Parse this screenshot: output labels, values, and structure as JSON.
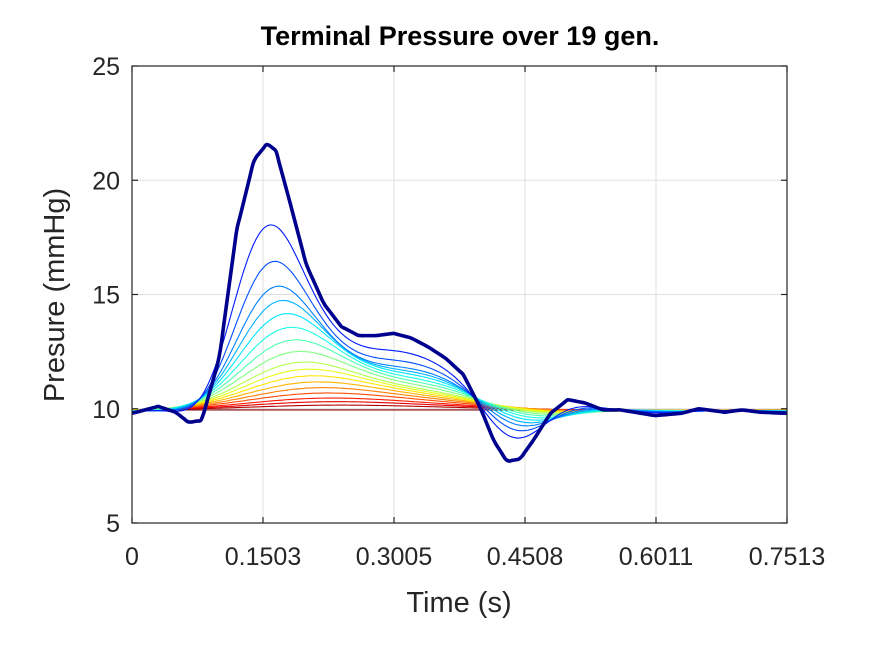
{
  "chart_data": {
    "type": "line",
    "title": "Terminal Pressure over 19 gen.",
    "xlabel": "Time (s)",
    "ylabel": "Presure (mmHg)",
    "xlim": [
      0,
      0.7513
    ],
    "ylim": [
      5,
      25
    ],
    "xticks": [
      "0",
      "0.1503",
      "0.3005",
      "0.4508",
      "0.6011",
      "0.7513"
    ],
    "yticks": [
      "5",
      "10",
      "15",
      "20",
      "25"
    ],
    "grid": true,
    "colormap": "jet",
    "baseline": 9.95,
    "series_count": 19,
    "primary_series_color": "#00008f",
    "primary_curve": {
      "x": [
        0,
        0.03,
        0.05,
        0.065,
        0.08,
        0.1,
        0.12,
        0.14,
        0.155,
        0.165,
        0.18,
        0.2,
        0.22,
        0.24,
        0.26,
        0.28,
        0.3,
        0.32,
        0.34,
        0.36,
        0.38,
        0.4,
        0.415,
        0.43,
        0.445,
        0.46,
        0.48,
        0.5,
        0.52,
        0.54,
        0.56,
        0.6,
        0.63,
        0.65,
        0.68,
        0.7,
        0.72,
        0.7513
      ],
      "y": [
        9.8,
        10.1,
        9.85,
        9.4,
        9.5,
        12.2,
        17.8,
        20.9,
        21.6,
        21.3,
        19.2,
        16.3,
        14.6,
        13.6,
        13.2,
        13.2,
        13.3,
        13.1,
        12.7,
        12.2,
        11.5,
        10.0,
        8.6,
        7.7,
        7.8,
        8.6,
        9.8,
        10.4,
        10.25,
        9.95,
        9.95,
        9.7,
        9.8,
        10.0,
        9.85,
        9.95,
        9.85,
        9.8
      ]
    },
    "peaks_by_generation": [
      21.6,
      19.3,
      17.8,
      16.8,
      16.3,
      15.8,
      15.2,
      14.6,
      14.0,
      13.4,
      13.0,
      12.6,
      12.2,
      11.8,
      11.4,
      11.0,
      10.7,
      10.4,
      9.95
    ]
  }
}
